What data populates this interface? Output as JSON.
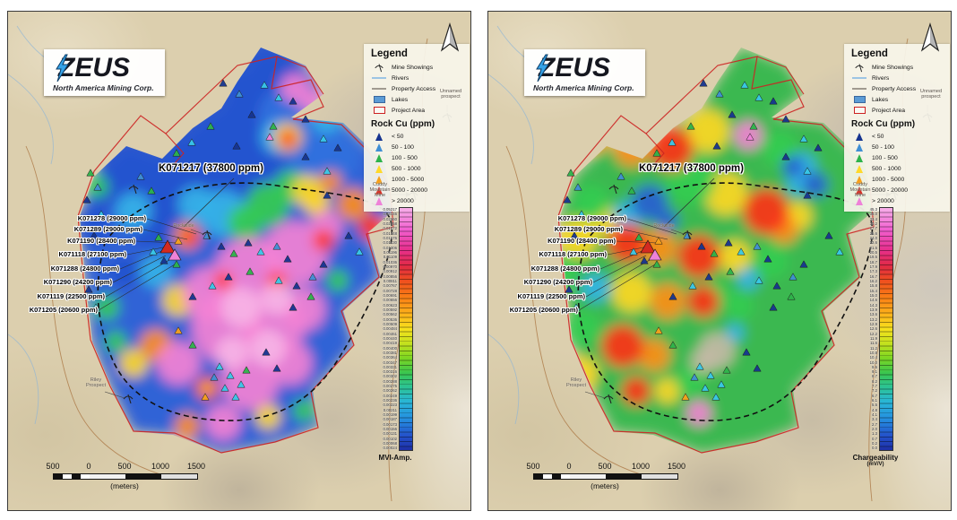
{
  "logo": {
    "title": "ZEUS",
    "subtitle": "North America Mining Corp."
  },
  "legend": {
    "title": "Legend",
    "items": [
      {
        "name": "mine-showings",
        "label": "Mine Showings",
        "type": "icon-pick",
        "color": "#222222"
      },
      {
        "name": "rivers",
        "label": "Rivers",
        "type": "line",
        "color": "#9cc4e4"
      },
      {
        "name": "property-access",
        "label": "Property Access",
        "type": "line",
        "color": "#a09a90"
      },
      {
        "name": "lakes",
        "label": "Lakes",
        "type": "rect",
        "color": "#5b9bd5"
      },
      {
        "name": "project-area",
        "label": "Project Area",
        "type": "rect-outline",
        "color": "#cc2222"
      }
    ],
    "rock_cu": {
      "title": "Rock Cu (ppm)",
      "classes": [
        {
          "label": "< 50",
          "color": "#16348f"
        },
        {
          "label": "50 - 100",
          "color": "#3f8fd4"
        },
        {
          "label": "100 - 500",
          "color": "#2db34a"
        },
        {
          "label": "500 - 1000",
          "color": "#ffd92b"
        },
        {
          "label": "1000 - 5000",
          "color": "#f7a11a"
        },
        {
          "label": "5000 - 20000",
          "color": "#d42a20"
        },
        {
          "label": "> 20000",
          "color": "#ee82d8"
        }
      ]
    }
  },
  "samples": {
    "headline": "K071217 (37800 ppm)",
    "labels": [
      "K071278 (29000 ppm)",
      "K071289 (29000 ppm)",
      "K071190 (28400 ppm)",
      "K071118 (27100 ppm)",
      "K071288 (24800 ppm)",
      "K071290 (24200 ppm)",
      "K071119 (22500 ppm)",
      "K071205 (20600 ppm)"
    ]
  },
  "annotations": {
    "unnamed_prospect": {
      "line1": "Unnamed",
      "line2": "prospect"
    },
    "cuddy_mine": {
      "line1": "Cuddy",
      "line2": "Mountain",
      "line3": "Mine"
    },
    "rockslide": "Rockslide",
    "riley_prospect": {
      "line1": "Riley",
      "line2": "Prospect"
    }
  },
  "scale_bar": {
    "ticks": [
      "500",
      "0",
      "500",
      "1000",
      "1500"
    ],
    "units": "(meters)"
  },
  "colorbar_ramp": [
    "#f8b0ea 0%",
    "#f25fd0 9%",
    "#e8308f 17%",
    "#e02a44 24%",
    "#ef4f1f 30%",
    "#f97f16 37%",
    "#fdb31b 44%",
    "#f6e11c 50%",
    "#c3e11e 56%",
    "#7cd622 62%",
    "#3bc64e 68%",
    "#2cc394 74%",
    "#29b6d6 80%",
    "#2590e0 87%",
    "#2453cc 94%",
    "#1e2fa6 100%"
  ],
  "maps": [
    {
      "name": "mvi-amplitude-map",
      "colorbar": {
        "title": "MVI-Amp.",
        "subtitle": "",
        "values": [
          "0.05217",
          "0.03446",
          "0.02660",
          "0.02258",
          "0.01972",
          "0.01748",
          "0.01576",
          "0.01430",
          "0.01306",
          "0.01196",
          "0.01109",
          "0.01036",
          "0.00970",
          "0.00912",
          "0.00856",
          "0.00811",
          "0.00767",
          "0.00728",
          "0.00691",
          "0.00656",
          "0.00623",
          "0.00592",
          "0.00562",
          "0.00536",
          "0.00509",
          "0.00484",
          "0.00461",
          "0.00440",
          "0.00419",
          "0.00400",
          "0.00381",
          "0.00364",
          "0.00347",
          "0.00331",
          "0.00316",
          "0.00302",
          "0.00288",
          "0.00275",
          "0.00262",
          "0.00249",
          "0.00236",
          "0.00223",
          "0.00211",
          "0.00199",
          "0.00187",
          "0.00173",
          "0.00156",
          "0.00131",
          "0.00102",
          "0.00068",
          "0.00024"
        ]
      }
    },
    {
      "name": "chargeability-map",
      "colorbar": {
        "title": "Chargeability",
        "subtitle": "(mV/V)",
        "values": [
          "45.3",
          "38.0",
          "33.4",
          "30.2",
          "27.7",
          "25.6",
          "24.0",
          "22.6",
          "21.5",
          "20.5",
          "19.5",
          "18.7",
          "17.9",
          "17.3",
          "16.7",
          "16.2",
          "15.8",
          "15.4",
          "15.0",
          "14.6",
          "14.3",
          "13.9",
          "13.6",
          "13.2",
          "12.9",
          "12.6",
          "12.2",
          "11.9",
          "11.6",
          "11.2",
          "10.8",
          "10.4",
          "10.0",
          "9.6",
          "9.1",
          "8.7",
          "8.2",
          "7.7",
          "7.2",
          "6.7",
          "6.1",
          "5.5",
          "4.8",
          "4.1",
          "3.4",
          "2.7",
          "2.0",
          "1.3",
          "0.7",
          "0.2",
          "0.0"
        ]
      }
    }
  ]
}
